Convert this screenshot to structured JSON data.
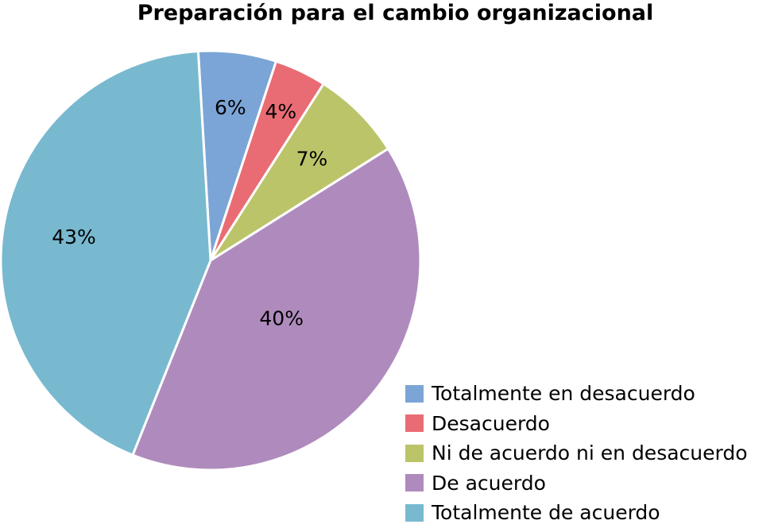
{
  "chart_data": {
    "type": "pie",
    "title": "Preparación para el cambio organizacional",
    "categories": [
      "Totalmente en desacuerdo",
      "Desacuerdo",
      "Ni de acuerdo ni en desacuerdo",
      "De acuerdo",
      "Totalmente de acuerdo"
    ],
    "values": [
      6,
      4,
      7,
      40,
      43
    ],
    "data_labels": [
      "6%",
      "4%",
      "7%",
      "40%",
      "43%"
    ],
    "colors": [
      "#7BA5D6",
      "#E96C74",
      "#BCC46A",
      "#AF8BBD",
      "#78B9CF"
    ],
    "legend_position": "bottom-right"
  }
}
